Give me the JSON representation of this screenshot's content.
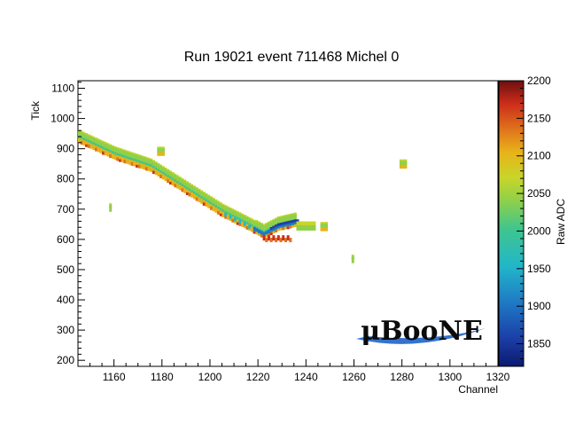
{
  "chart_data": {
    "type": "heatmap",
    "title": "Run 19021 event 711468 Michel 0",
    "xlabel": "Channel",
    "ylabel": "Tick",
    "zlabel": "Raw ADC",
    "xlim": [
      1145,
      1320
    ],
    "ylim": [
      180,
      1125
    ],
    "zlim": [
      1820,
      2200
    ],
    "x_ticks": [
      1160,
      1180,
      1200,
      1220,
      1240,
      1260,
      1280,
      1300,
      1320
    ],
    "y_ticks": [
      200,
      300,
      400,
      500,
      600,
      700,
      800,
      900,
      1000,
      1100
    ],
    "z_ticks": [
      1850,
      1900,
      1950,
      2000,
      2050,
      2100,
      2150,
      2200
    ],
    "track_points": [
      {
        "channel": 1145,
        "tick": 935
      },
      {
        "channel": 1160,
        "tick": 880
      },
      {
        "channel": 1175,
        "tick": 840
      },
      {
        "channel": 1190,
        "tick": 765
      },
      {
        "channel": 1205,
        "tick": 690
      },
      {
        "channel": 1215,
        "tick": 650
      },
      {
        "channel": 1222,
        "tick": 620
      },
      {
        "channel": 1228,
        "tick": 645
      },
      {
        "channel": 1235,
        "tick": 658
      }
    ],
    "isolated_hits": [
      {
        "channel": 1178,
        "tick": 892
      },
      {
        "channel": 1158,
        "tick": 705
      },
      {
        "channel": 1279,
        "tick": 850
      },
      {
        "channel": 1259,
        "tick": 535
      },
      {
        "channel": 1246,
        "tick": 643
      }
    ],
    "grid": false,
    "palette": [
      "#0b1a6e",
      "#1c3fa8",
      "#1e78c4",
      "#22b6c9",
      "#3fc58f",
      "#8fd04a",
      "#c8d52a",
      "#e8b319",
      "#e0731c",
      "#cc2d1a",
      "#6b0f10"
    ]
  },
  "logo": {
    "text": "μBooNE"
  }
}
